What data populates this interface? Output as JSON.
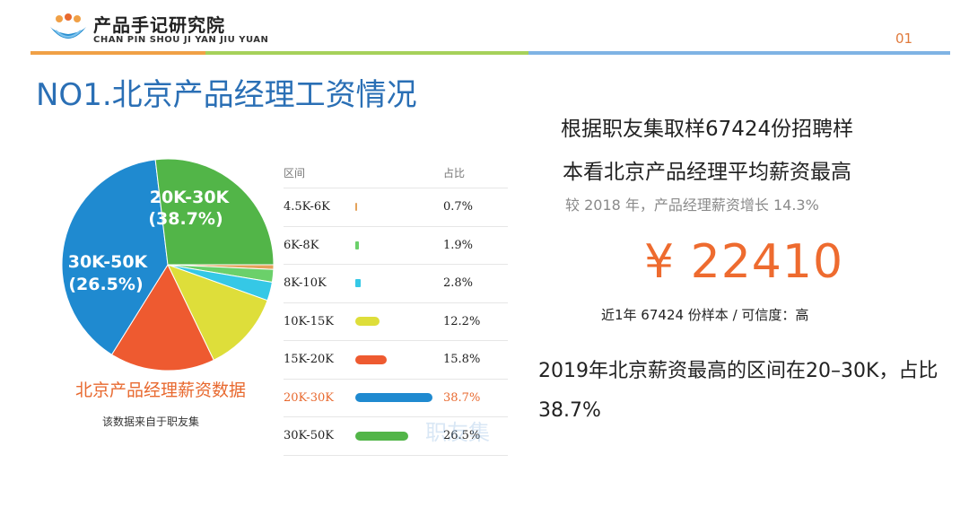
{
  "header": {
    "logo_cn": "产品手记研究院",
    "logo_en": "CHAN PIN SHOU JI YAN JIU YUAN",
    "page_number": "01"
  },
  "slide": {
    "title": "NO1.北京产品经理工资情况"
  },
  "pie": {
    "caption": "北京产品经理薪资数据",
    "source_note": "该数据来自于职友集",
    "labels": [
      {
        "range": "20K-30K",
        "pct": "(38.7%)"
      },
      {
        "range": "30K-50K",
        "pct": "(26.5%)"
      }
    ]
  },
  "table": {
    "header_range": "区间",
    "header_pct": "占比",
    "rows": [
      {
        "range": "4.5K-6K",
        "pct": "0.7%"
      },
      {
        "range": "6K-8K",
        "pct": "1.9%"
      },
      {
        "range": "8K-10K",
        "pct": "2.8%"
      },
      {
        "range": "10K-15K",
        "pct": "12.2%"
      },
      {
        "range": "15K-20K",
        "pct": "15.8%"
      },
      {
        "range": "20K-30K",
        "pct": "38.7%"
      },
      {
        "range": "30K-50K",
        "pct": "26.5%"
      }
    ],
    "highlight_range": "20K-30K",
    "watermark": "职友集"
  },
  "right": {
    "line1": "根据职友集取样67424份招聘样",
    "line2": "本看北京产品经理平均薪资最高",
    "subline": "较 2018 年，产品经理薪资增长 14.3%",
    "average_salary": "¥ 22410",
    "sample_note": "近1年 67424 份样本 / 可信度：高",
    "conclusion": "2019年北京薪资最高的区间在20–30K，占比38.7%"
  },
  "colors": {
    "title_blue": "#2a6fb5",
    "accent_orange": "#ee6b2f"
  },
  "chart_data": {
    "type": "pie",
    "categories": [
      "4.5K-6K",
      "6K-8K",
      "8K-10K",
      "10K-15K",
      "15K-20K",
      "20K-30K",
      "30K-50K"
    ],
    "values": [
      0.7,
      1.9,
      2.8,
      12.2,
      15.8,
      38.7,
      26.5
    ],
    "colors": [
      "#e4a25a",
      "#6bd06a",
      "#35c8e6",
      "#dede3a",
      "#ee5a30",
      "#1f8ad0",
      "#52b548"
    ],
    "title": "北京产品经理薪资数据",
    "unit": "%"
  }
}
